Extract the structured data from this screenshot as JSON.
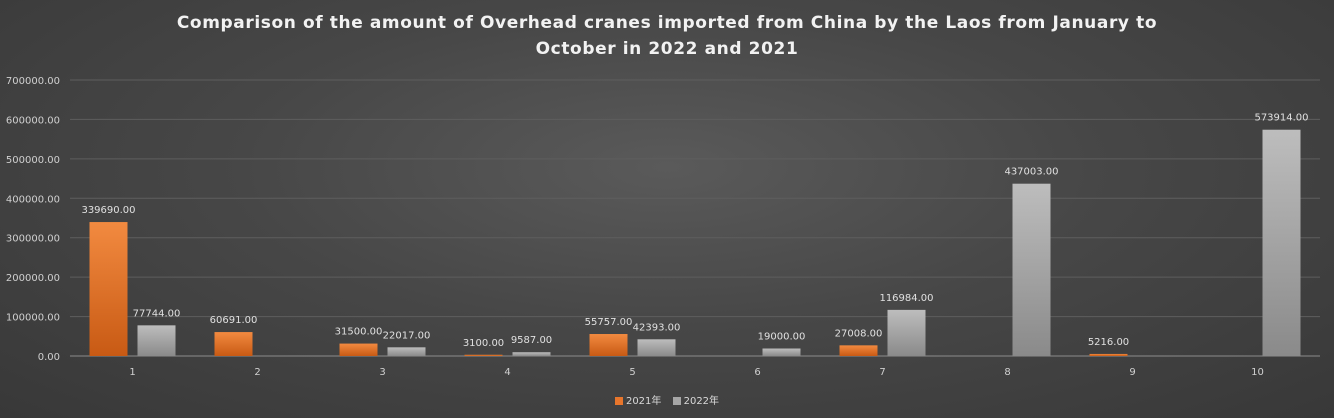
{
  "chart_data": {
    "type": "bar",
    "title_line1": "Comparison of the amount of Overhead cranes imported from China by the Laos from January to",
    "title_line2": "October in 2022 and 2021",
    "categories": [
      "1",
      "2",
      "3",
      "4",
      "5",
      "6",
      "7",
      "8",
      "9",
      "10"
    ],
    "series": [
      {
        "name": "2021年",
        "color": "#e8762c",
        "values": [
          339690.0,
          60691.0,
          31500.0,
          3100.0,
          55757.0,
          null,
          27008.0,
          null,
          5216.0,
          null
        ],
        "labels": [
          "339690.00",
          "60691.00",
          "31500.00",
          "3100.00",
          "55757.00",
          null,
          "27008.00",
          null,
          "5216.00",
          null
        ]
      },
      {
        "name": "2022年",
        "color": "#a6a6a6",
        "values": [
          77744.0,
          null,
          22017.0,
          9587.0,
          42393.0,
          19000.0,
          116984.0,
          437003.0,
          null,
          573914.0
        ],
        "labels": [
          "77744.00",
          null,
          "22017.00",
          "9587.00",
          "42393.00",
          "19000.00",
          "116984.00",
          "437003.00",
          null,
          "573914.00"
        ]
      }
    ],
    "yticks": [
      "0.00",
      "100000.00",
      "200000.00",
      "300000.00",
      "400000.00",
      "500000.00",
      "600000.00",
      "700000.00"
    ],
    "ylim": [
      0,
      700000
    ],
    "grid": true,
    "legend_position": "bottom"
  }
}
